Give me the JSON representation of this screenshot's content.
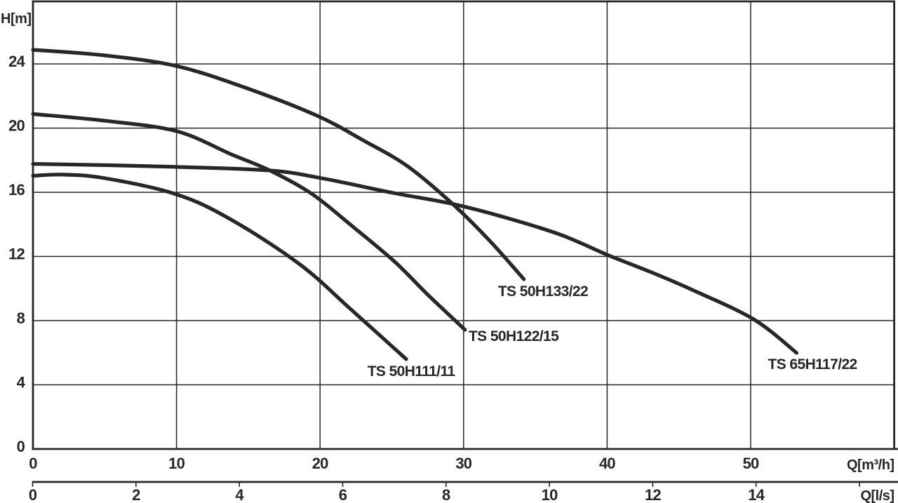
{
  "chart_data": {
    "type": "line",
    "title": "",
    "description": "Pump performance curves H over Q",
    "grid": true,
    "legend": "inline-labels",
    "colors": {
      "line": "#2a2527",
      "background": "#ffffff"
    },
    "x_axis": {
      "label": "Q[m³/h]",
      "ticks": [
        0,
        10,
        20,
        30,
        40,
        50
      ],
      "range": [
        0,
        60
      ]
    },
    "x2_axis": {
      "label": "Q[l/s]",
      "ticks": [
        0,
        2,
        4,
        6,
        8,
        10,
        12,
        14
      ],
      "unlabeled_ticks": [
        16
      ],
      "range": [
        0,
        16.8
      ]
    },
    "y_axis": {
      "label": "H[m]",
      "ticks": [
        0,
        4,
        8,
        12,
        16,
        20,
        24
      ],
      "range": [
        0,
        27.9
      ]
    },
    "series": [
      {
        "name": "TS 50H133/22",
        "label_at": [
          32.4,
          9.53
        ],
        "points": [
          [
            0,
            24.88
          ],
          [
            5,
            24.53
          ],
          [
            10,
            23.87
          ],
          [
            14.8,
            22.52
          ],
          [
            19.8,
            20.77
          ],
          [
            23,
            19.24
          ],
          [
            26.1,
            17.62
          ],
          [
            29.3,
            15.22
          ],
          [
            31.9,
            12.9
          ],
          [
            34.2,
            10.58
          ]
        ]
      },
      {
        "name": "TS 50H122/15",
        "label_at": [
          30.35,
          6.73
        ],
        "points": [
          [
            0,
            20.88
          ],
          [
            5,
            20.46
          ],
          [
            10,
            19.81
          ],
          [
            13.8,
            18.37
          ],
          [
            16.5,
            17.36
          ],
          [
            19.4,
            15.92
          ],
          [
            22.1,
            13.99
          ],
          [
            25.2,
            11.67
          ],
          [
            27.5,
            9.62
          ],
          [
            30.1,
            7.43
          ]
        ]
      },
      {
        "name": "TS 50H111/11",
        "label_at": [
          23.3,
          4.55
        ],
        "points": [
          [
            0,
            17.03
          ],
          [
            2.1,
            17.1
          ],
          [
            5,
            16.88
          ],
          [
            10,
            15.87
          ],
          [
            13.8,
            14.3
          ],
          [
            18.6,
            11.5
          ],
          [
            22.1,
            8.74
          ],
          [
            26,
            5.6
          ]
        ]
      },
      {
        "name": "TS 65H117/22",
        "label_at": [
          51.2,
          4.98
        ],
        "points": [
          [
            0,
            17.77
          ],
          [
            5,
            17.69
          ],
          [
            10,
            17.58
          ],
          [
            16.5,
            17.36
          ],
          [
            20.1,
            16.88
          ],
          [
            25.1,
            15.96
          ],
          [
            29.1,
            15.3
          ],
          [
            32.9,
            14.43
          ],
          [
            36.8,
            13.34
          ],
          [
            40.1,
            12.07
          ],
          [
            43.2,
            10.97
          ],
          [
            45.9,
            9.93
          ],
          [
            50.2,
            8.09
          ],
          [
            53.2,
            5.99
          ]
        ]
      }
    ]
  }
}
